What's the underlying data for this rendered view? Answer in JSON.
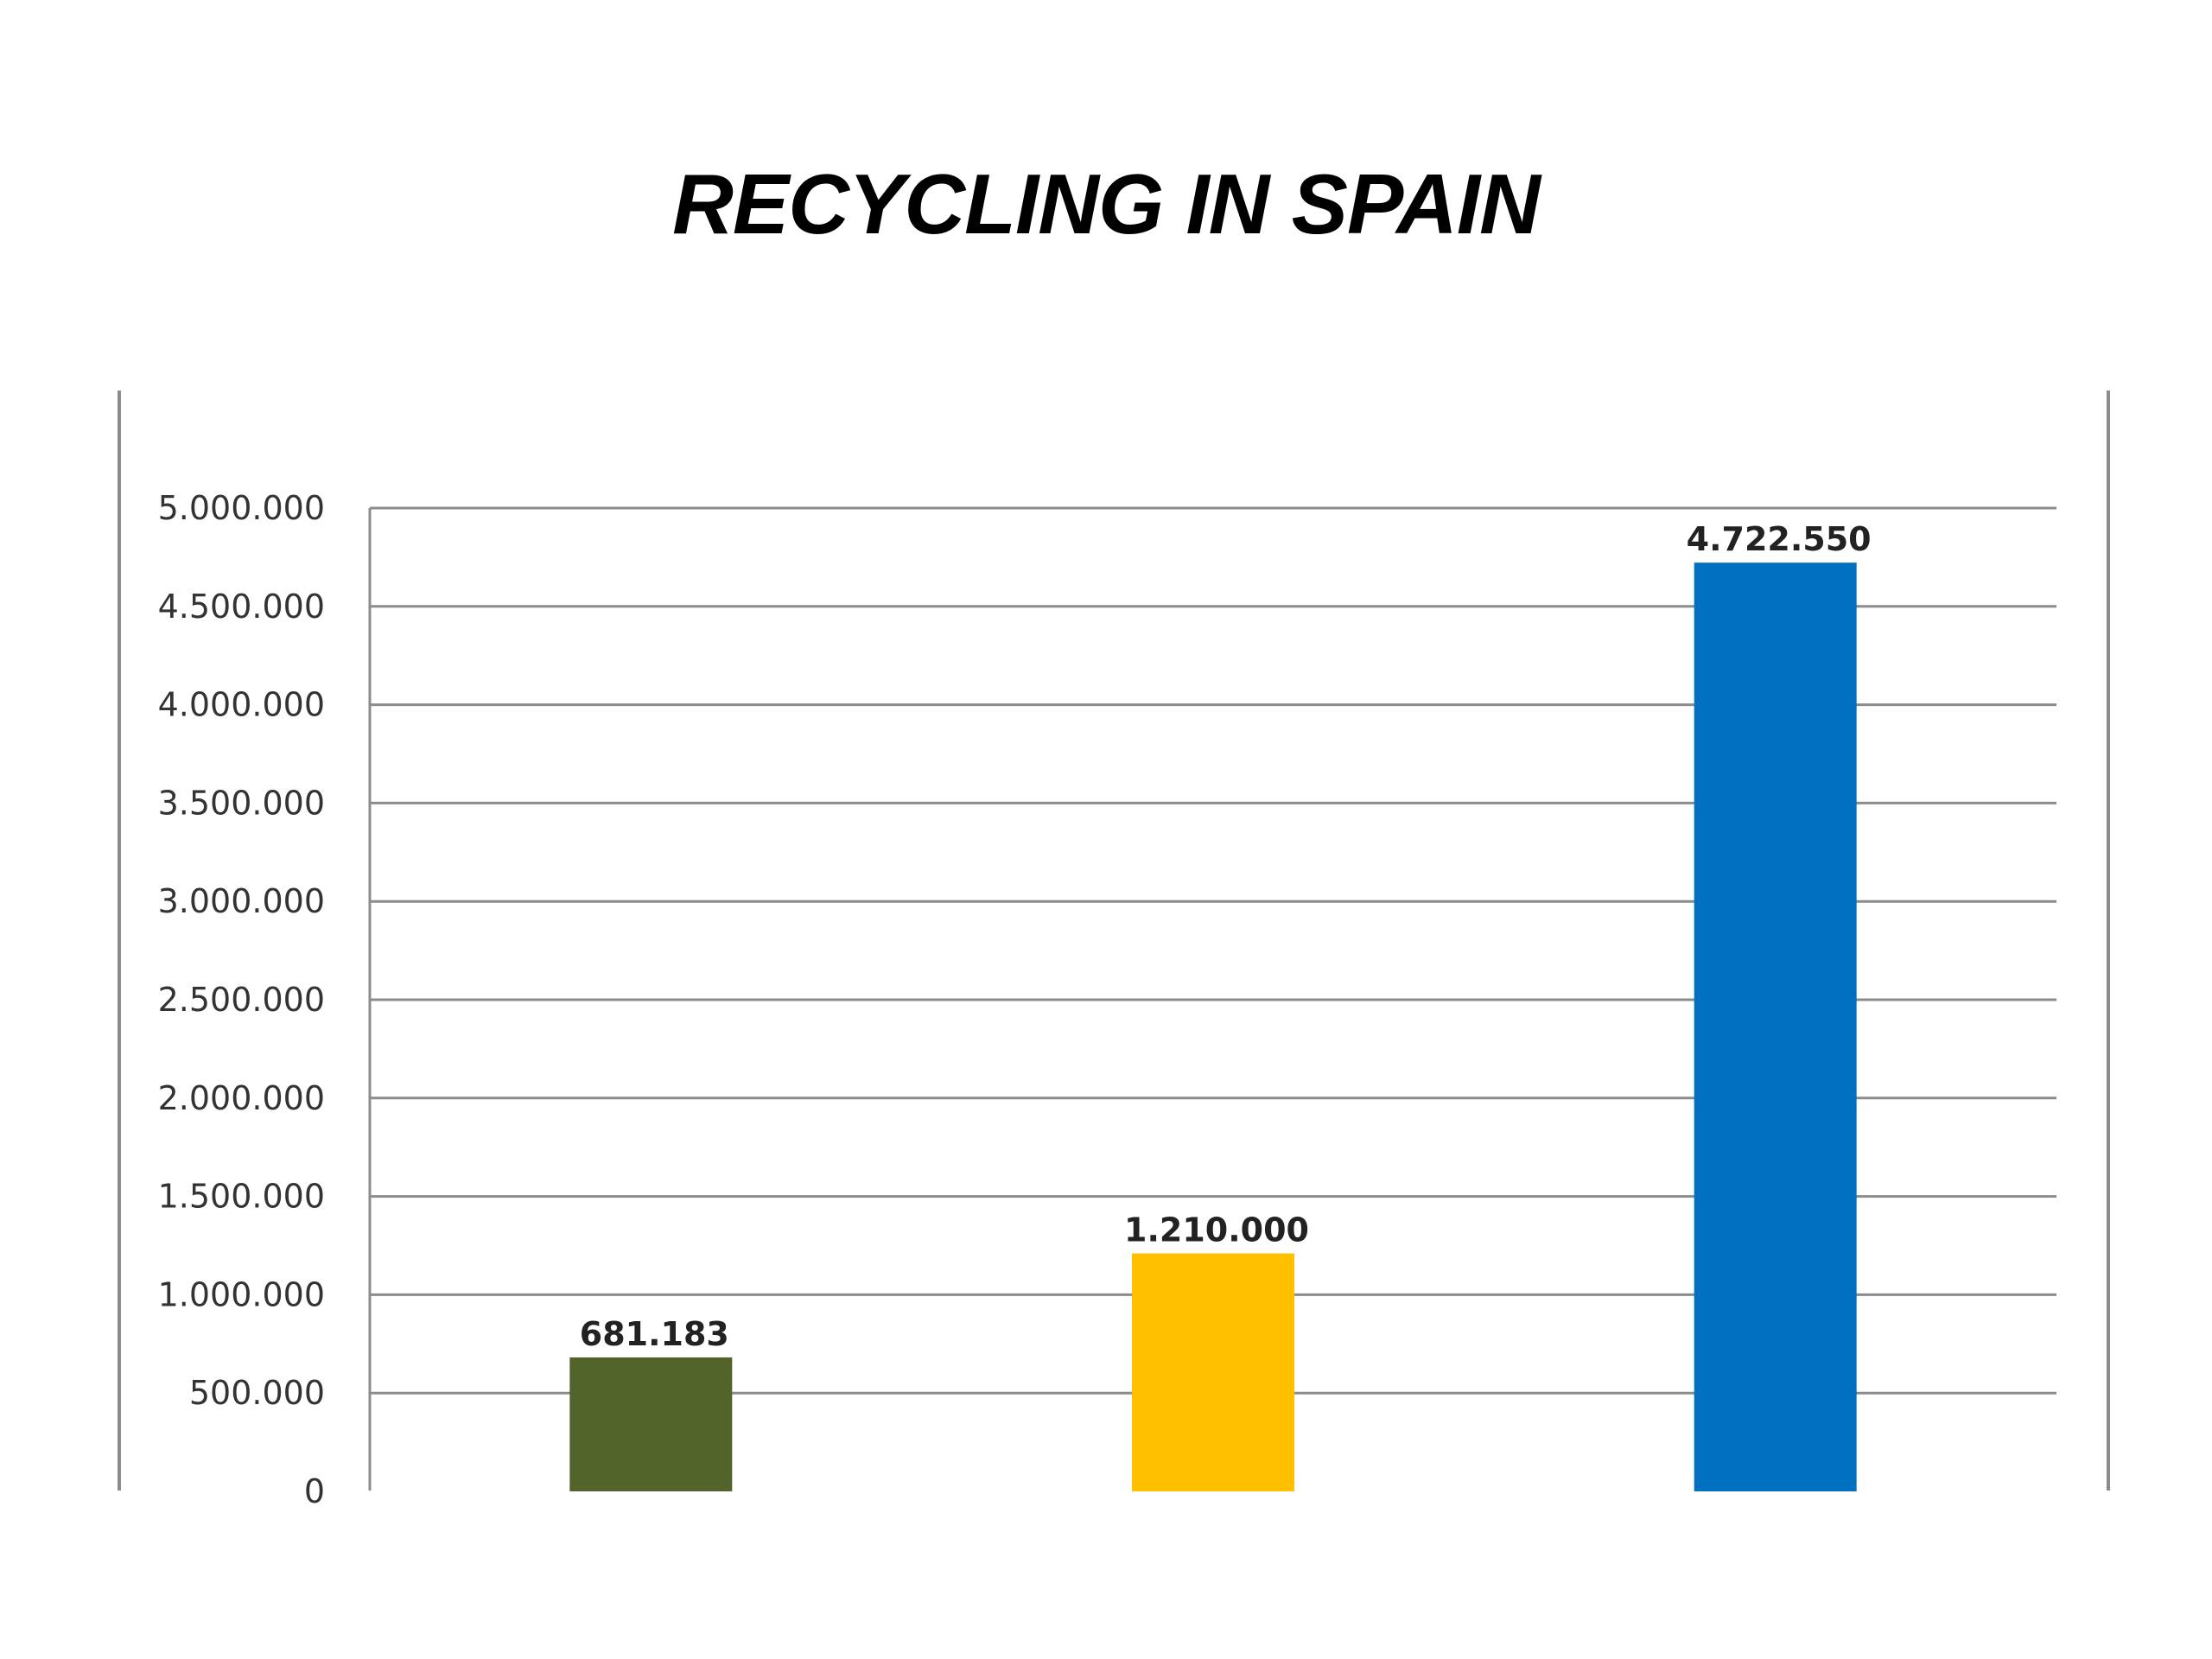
{
  "chart_data": {
    "type": "bar",
    "title": "RECYCLING IN SPAIN",
    "xlabel": "",
    "ylabel": "",
    "categories": [
      "",
      "",
      ""
    ],
    "values": [
      681183,
      1210000,
      4722550
    ],
    "data_labels": [
      "681.183",
      "1.210.000",
      "4.722.550"
    ],
    "bar_colors": [
      "#52642a",
      "#ffc000",
      "#0070c0"
    ],
    "ylim": [
      0,
      5000000
    ],
    "yticks": [
      0,
      500000,
      1000000,
      1500000,
      2000000,
      2500000,
      3000000,
      3500000,
      4000000,
      4500000,
      5000000
    ],
    "ytick_labels": [
      "0",
      "500.000",
      "1.000.000",
      "1.500.000",
      "2.000.000",
      "2.500.000",
      "3.000.000",
      "3.500.000",
      "4.000.000",
      "4.500.000",
      "5.000.000"
    ],
    "grid": true,
    "legend": "none"
  }
}
